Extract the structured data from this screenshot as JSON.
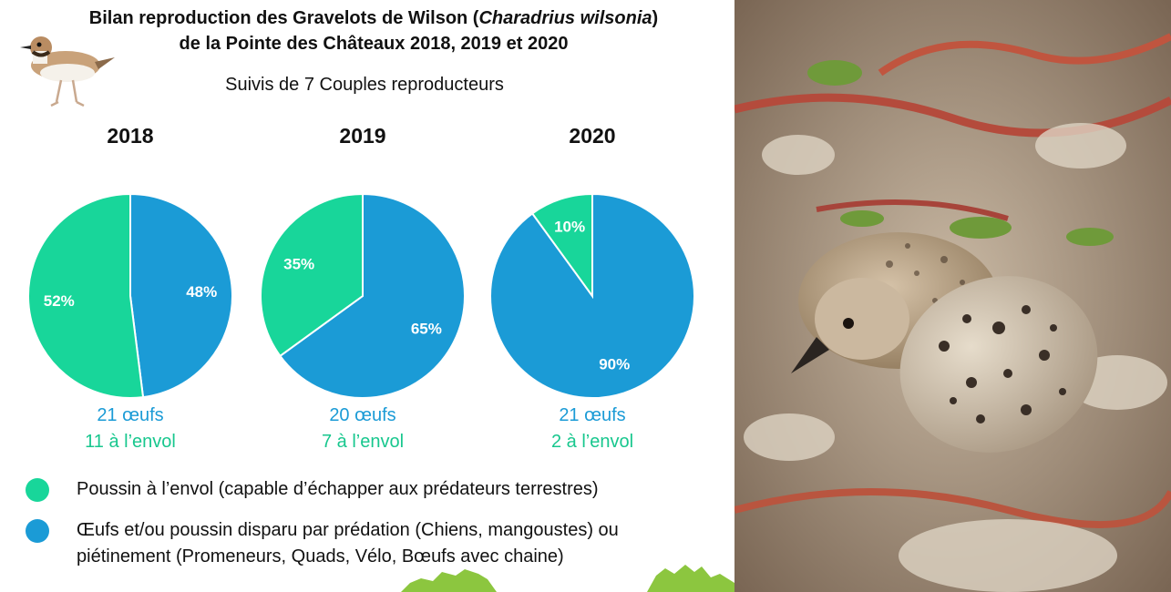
{
  "header": {
    "title_line1_pre": "Bilan reproduction des Gravelots de Wilson (",
    "title_line1_italic": "Charadrius wilsonia",
    "title_line1_post": ")",
    "title_line2": "de la Pointe des Châteaux 2018, 2019 et 2020",
    "subtitle": "Suivis de 7 Couples reproducteurs"
  },
  "colors": {
    "fledged": "#18d69a",
    "predation": "#1b9bd6"
  },
  "chart_data": [
    {
      "type": "pie",
      "title": "2018",
      "slices": [
        {
          "label": "48%",
          "value": 48,
          "color": "#1b9bd6"
        },
        {
          "label": "52%",
          "value": 52,
          "color": "#18d69a"
        }
      ],
      "eggs": "21 œufs",
      "fledged": "11 à l’envol"
    },
    {
      "type": "pie",
      "title": "2019",
      "slices": [
        {
          "label": "65%",
          "value": 65,
          "color": "#1b9bd6"
        },
        {
          "label": "35%",
          "value": 35,
          "color": "#18d69a"
        }
      ],
      "eggs": "20 œufs",
      "fledged": "7 à l’envol"
    },
    {
      "type": "pie",
      "title": "2020",
      "slices": [
        {
          "label": "90%",
          "value": 90,
          "color": "#1b9bd6"
        },
        {
          "label": "10%",
          "value": 10,
          "color": "#18d69a"
        }
      ],
      "eggs": "21 œufs",
      "fledged": "2 à l’envol"
    }
  ],
  "legend": [
    {
      "color": "#18d69a",
      "line1": "Poussin à l’envol (capable d’échapper aux prédateurs terrestres)",
      "line2": ""
    },
    {
      "color": "#1b9bd6",
      "line1": "Œufs et/ou poussin disparu par prédation (Chiens, mangoustes) ou",
      "line2": "piétinement (Promeneurs, Quads, Vélo, Bœufs avec chaine)"
    }
  ],
  "images": {
    "bird_icon": "wilsons-plover-illustration",
    "photo": "plover-chick-and-egg-photo"
  }
}
